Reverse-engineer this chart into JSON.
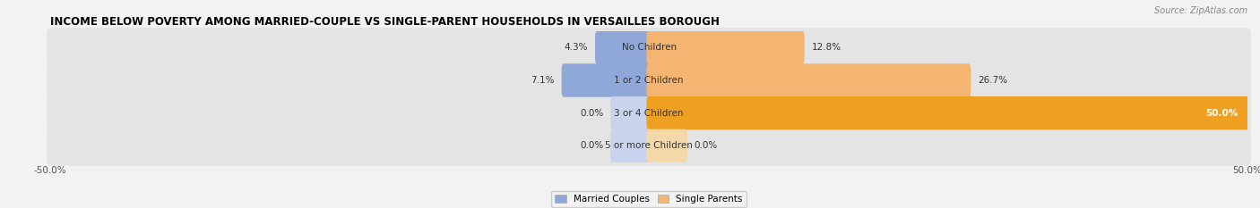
{
  "title": "INCOME BELOW POVERTY AMONG MARRIED-COUPLE VS SINGLE-PARENT HOUSEHOLDS IN VERSAILLES BOROUGH",
  "source": "Source: ZipAtlas.com",
  "categories": [
    "No Children",
    "1 or 2 Children",
    "3 or 4 Children",
    "5 or more Children"
  ],
  "married_values": [
    4.3,
    7.1,
    0.0,
    0.0
  ],
  "single_values": [
    12.8,
    26.7,
    50.0,
    0.0
  ],
  "married_color": "#8fa8d8",
  "single_color": "#f5b572",
  "single_color_50": "#f0a020",
  "single_color_faint": "#f5d8a8",
  "married_color_faint": "#c8d4ee",
  "bar_height": 0.62,
  "bar_gap": 0.18,
  "xlim": [
    -50,
    50
  ],
  "xtick_left": -50.0,
  "xtick_right": 50.0,
  "background_color": "#f2f2f2",
  "bar_bg_color": "#e4e4e4",
  "title_fontsize": 8.5,
  "source_fontsize": 7,
  "label_fontsize": 7.5,
  "legend_fontsize": 7.5,
  "category_fontsize": 7.5,
  "axis_label_fontsize": 7.5
}
